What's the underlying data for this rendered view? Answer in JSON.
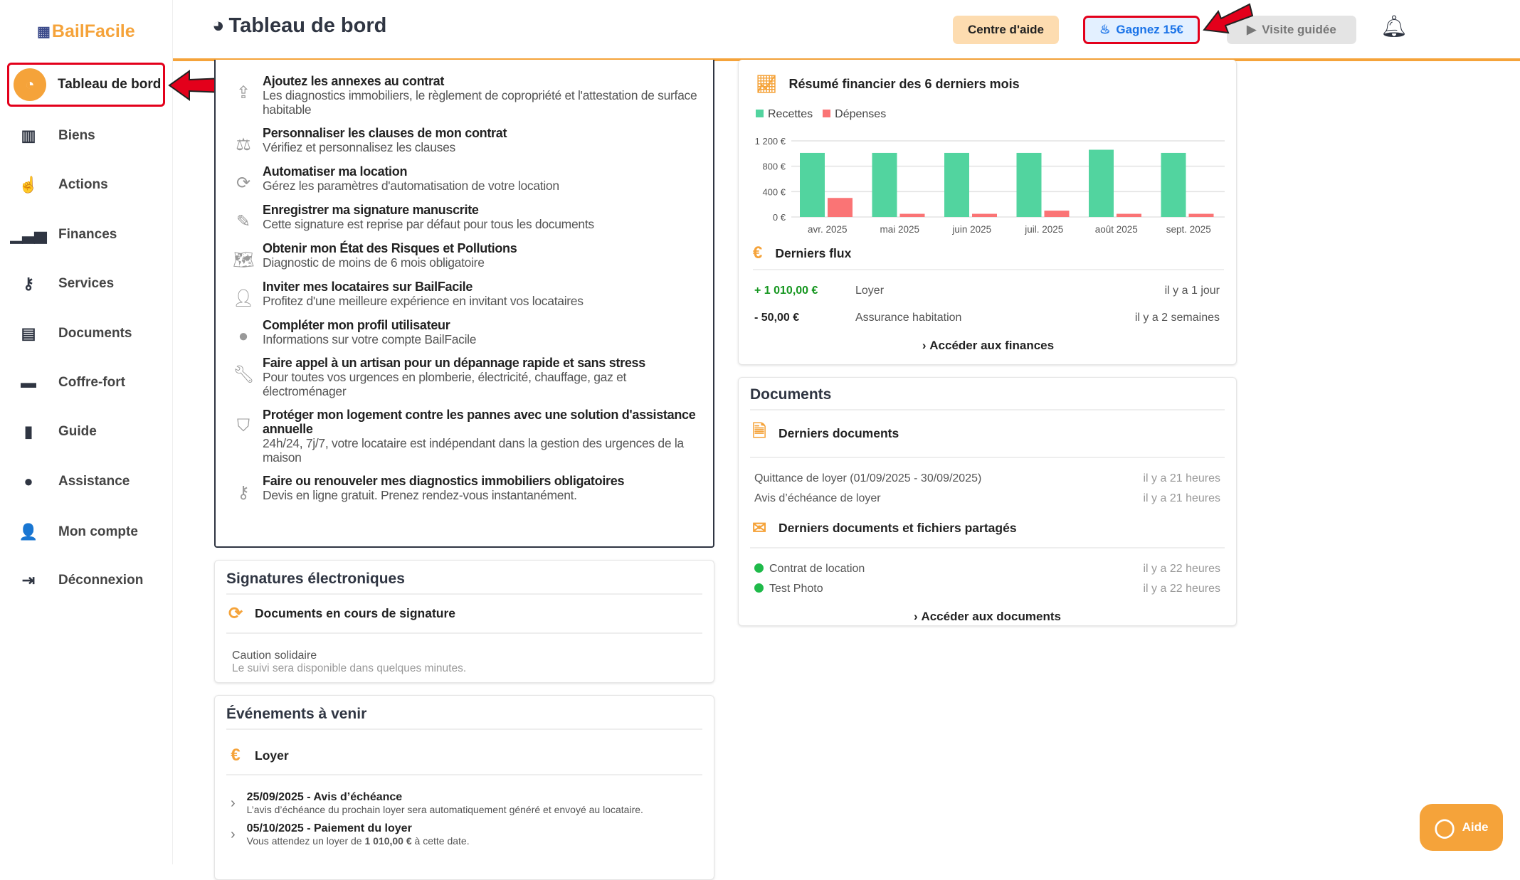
{
  "app": {
    "logo": "BailFacile",
    "page_title": "Tableau de bord"
  },
  "sidebar": {
    "items": [
      {
        "label": "Tableau de bord",
        "icon": "gauge-icon"
      },
      {
        "label": "Biens",
        "icon": "building-icon"
      },
      {
        "label": "Actions",
        "icon": "pointer-icon"
      },
      {
        "label": "Finances",
        "icon": "bar-chart-icon"
      },
      {
        "label": "Services",
        "icon": "key-icon"
      },
      {
        "label": "Documents",
        "icon": "file-icon"
      },
      {
        "label": "Coffre-fort",
        "icon": "archive-icon"
      },
      {
        "label": "Guide",
        "icon": "book-icon"
      },
      {
        "label": "Assistance",
        "icon": "chat-icon"
      },
      {
        "label": "Mon compte",
        "icon": "user-icon"
      },
      {
        "label": "Déconnexion",
        "icon": "logout-icon"
      }
    ]
  },
  "header": {
    "help_center": "Centre d'aide",
    "earn": "Gagnez 15€",
    "tour": "Visite guidée"
  },
  "todo": [
    {
      "title": "Ajoutez les annexes au contrat",
      "desc": "Les diagnostics immobiliers, le règlement de copropriété et l'attestation de surface habitable"
    },
    {
      "title": "Personnaliser les clauses de mon contrat",
      "desc": "Vérifiez et personnalisez les clauses"
    },
    {
      "title": "Automatiser ma location",
      "desc": "Gérez les paramètres d'automatisation de votre location"
    },
    {
      "title": "Enregistrer ma signature manuscrite",
      "desc": "Cette signature est reprise par défaut pour tous les documents"
    },
    {
      "title": "Obtenir mon État des Risques et Pollutions",
      "desc": "Diagnostic de moins de 6 mois obligatoire"
    },
    {
      "title": "Inviter mes locataires sur BailFacile",
      "desc": "Profitez d'une meilleure expérience en invitant vos locataires"
    },
    {
      "title": "Compléter mon profil utilisateur",
      "desc": "Informations sur votre compte BailFacile"
    },
    {
      "title": "Faire appel à un artisan pour un dépannage rapide et sans stress",
      "desc": "Pour toutes vos urgences en plomberie, électricité, chauffage, gaz et électroménager"
    },
    {
      "title": "Protéger mon logement contre les pannes avec une solution d'assistance annuelle",
      "desc": "24h/24, 7j/7, votre locataire est indépendant dans la gestion des urgences de la maison"
    },
    {
      "title": "Faire ou renouveler mes diagnostics immobiliers obligatoires",
      "desc": "Devis en ligne gratuit. Prenez rendez-vous instantanément."
    }
  ],
  "signatures": {
    "title": "Signatures électroniques",
    "sub": "Documents en cours de signature",
    "item": "Caution solidaire",
    "item_desc": "Le suivi sera disponible dans quelques minutes."
  },
  "events": {
    "title": "Événements à venir",
    "sub": "Loyer",
    "items": [
      {
        "title": "25/09/2025 - Avis d’échéance",
        "desc": "L’avis d’échéance du prochain loyer sera automatiquement généré et envoyé au locataire."
      },
      {
        "title": "05/10/2025 - Paiement du loyer",
        "desc_pre": "Vous attendez un loyer de ",
        "desc_bold": "1 010,00 €",
        "desc_post": " à cette date."
      }
    ]
  },
  "finance": {
    "title": "Résumé financier des 6 derniers mois",
    "flux_title": "Derniers flux",
    "flux": [
      {
        "amount": "+ 1 010,00 €",
        "label": "Loyer",
        "when": "il y a 1 jour"
      },
      {
        "amount": "- 50,00 €",
        "label": "Assurance habitation",
        "when": "il y a 2 semaines"
      }
    ],
    "link": "Accéder aux finances"
  },
  "chart_data": {
    "type": "bar",
    "title": "Résumé financier des 6 derniers mois",
    "categories": [
      "avr. 2025",
      "mai 2025",
      "juin 2025",
      "juil. 2025",
      "août 2025",
      "sept. 2025"
    ],
    "series": [
      {
        "name": "Recettes",
        "color": "#52d49f",
        "values": [
          1010,
          1010,
          1010,
          1010,
          1060,
          1010
        ]
      },
      {
        "name": "Dépenses",
        "color": "#fa7475",
        "values": [
          300,
          50,
          50,
          100,
          50,
          50
        ]
      }
    ],
    "yticks": [
      "0 €",
      "400 €",
      "800 €",
      "1 200 €"
    ],
    "ytick_values": [
      0,
      400,
      800,
      1200
    ],
    "ylim": [
      0,
      1200
    ],
    "legend": "top-left",
    "grid": true
  },
  "documents": {
    "title": "Documents",
    "recent_title": "Derniers documents",
    "recent": [
      {
        "name": "Quittance de loyer (01/09/2025 - 30/09/2025)",
        "when": "il y a 21 heures"
      },
      {
        "name": "Avis d’échéance de loyer",
        "when": "il y a 21 heures"
      }
    ],
    "shared_title": "Derniers documents et fichiers partagés",
    "shared": [
      {
        "name": "Contrat de location",
        "when": "il y a 22 heures"
      },
      {
        "name": "Test Photo",
        "when": "il y a 22 heures"
      }
    ],
    "link": "Accéder aux documents"
  },
  "aide": "Aide",
  "colors": {
    "accent": "#f5a33a",
    "navy": "#2f3542",
    "green": "#52d49f",
    "red": "#fa7475"
  }
}
